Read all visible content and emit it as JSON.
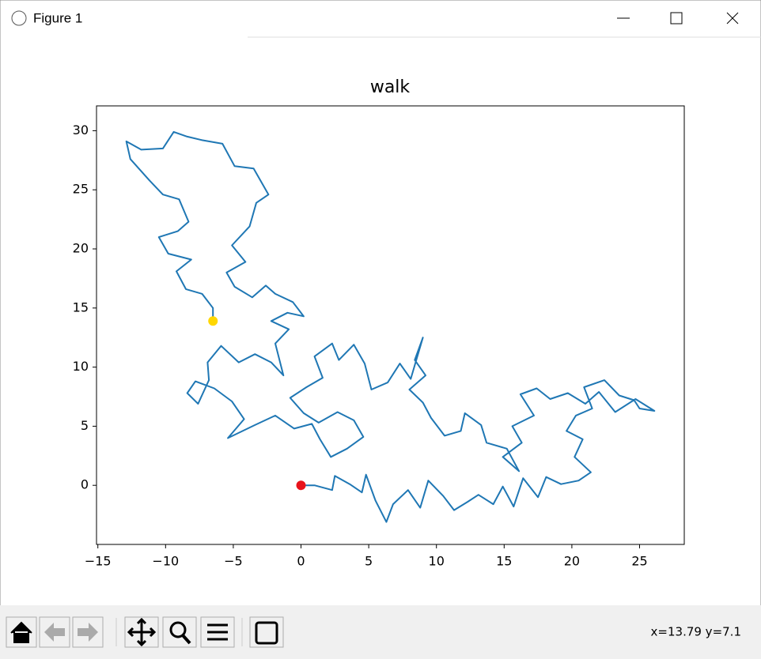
{
  "window_title": "Figure 1",
  "status": "x=13.79 y=7.1",
  "chart_data": {
    "type": "line",
    "title": "walk",
    "x": [
      0,
      1,
      2.3,
      2.5,
      3.6,
      4.5,
      4.8,
      5.5,
      6.3,
      6.8,
      7.9,
      8.8,
      9.4,
      10.5,
      11.3,
      12.3,
      13.1,
      14.2,
      14.9,
      15.7,
      16.4,
      17.5,
      18.1,
      19.2,
      20.5,
      21.4,
      20.2,
      20.8,
      19.6,
      20.3,
      21.5,
      20.9,
      22.4,
      23.5,
      24.6,
      25.0,
      26.1,
      24.7,
      23.2,
      22.0,
      21.0,
      19.7,
      18.4,
      17.4,
      16.2,
      17.2,
      15.6,
      16.3,
      14.9,
      16.1,
      15.2,
      13.7,
      13.3,
      12.1,
      11.8,
      10.6,
      9.6,
      9.0,
      8.0,
      9.2,
      8.4,
      9.0,
      8.1,
      7.3,
      6.4,
      5.2,
      4.7,
      3.9,
      2.8,
      2.3,
      1.0,
      1.6,
      0.4,
      -0.8,
      0.2,
      1.3,
      2.7,
      3.9,
      4.6,
      3.4,
      2.2,
      1.4,
      0.8,
      -0.5,
      -1.9,
      -3.4,
      -5.4,
      -4.2,
      -5.1,
      -6.4,
      -7.8,
      -8.4,
      -7.6,
      -6.8,
      -6.9,
      -5.9,
      -4.6,
      -3.4,
      -2.2,
      -1.3,
      -1.9,
      -0.9,
      -2.2,
      -1.0,
      0.2,
      -0.6,
      -1.9,
      -2.6,
      -3.6,
      -4.9,
      -5.5,
      -4.1,
      -5.1,
      -3.8,
      -3.3,
      -2.4,
      -3.5,
      -4.9,
      -5.8,
      -7.3,
      -8.4,
      -9.4,
      -10.2,
      -11.8,
      -12.9,
      -12.6,
      -11.2,
      -10.2,
      -9.0,
      -8.3,
      -9.1,
      -10.5,
      -9.8,
      -8.1,
      -9.2,
      -8.5,
      -7.3,
      -6.5,
      -6.5
    ],
    "series": [
      {
        "color": "#1f77b4",
        "values": [
          0,
          0,
          -0.4,
          0.8,
          0.1,
          -0.6,
          0.9,
          -1.3,
          -3.1,
          -1.6,
          -0.4,
          -1.9,
          0.4,
          -0.9,
          -2.1,
          -1.4,
          -0.8,
          -1.6,
          -0.1,
          -1.8,
          0.6,
          -1.0,
          0.7,
          0.1,
          0.4,
          1.1,
          2.4,
          3.9,
          4.6,
          5.9,
          6.5,
          8.3,
          8.9,
          7.6,
          7.2,
          6.5,
          6.3,
          7.3,
          6.2,
          7.9,
          6.9,
          7.8,
          7.3,
          8.2,
          7.7,
          5.9,
          5.0,
          3.6,
          2.4,
          1.2,
          3.1,
          3.6,
          5.1,
          6.1,
          4.6,
          4.2,
          5.7,
          7.0,
          8.1,
          9.3,
          10.6,
          12.5,
          9.0,
          10.3,
          8.7,
          8.1,
          10.3,
          11.9,
          10.6,
          12.0,
          10.9,
          9.1,
          8.3,
          7.4,
          6.1,
          5.3,
          6.2,
          5.5,
          4.1,
          3.1,
          2.4,
          3.9,
          5.2,
          4.8,
          5.9,
          5.1,
          4.0,
          5.6,
          7.1,
          8.2,
          8.8,
          7.8,
          6.9,
          8.9,
          10.4,
          11.8,
          10.4,
          11.1,
          10.4,
          9.3,
          12.0,
          13.2,
          13.9,
          14.6,
          14.3,
          15.5,
          16.2,
          16.9,
          15.9,
          16.8,
          18.0,
          18.9,
          20.3,
          21.9,
          23.9,
          24.6,
          26.8,
          27.0,
          28.9,
          29.2,
          29.5,
          29.9,
          28.5,
          28.4,
          29.1,
          27.6,
          25.8,
          24.6,
          24.2,
          22.3,
          21.5,
          21.0,
          19.6,
          19.1,
          18.1,
          16.6,
          16.2,
          15.0,
          13.9
        ]
      }
    ],
    "points": [
      {
        "x": 0,
        "y": 0,
        "color": "#e8141c"
      },
      {
        "x": -6.5,
        "y": 13.9,
        "color": "#ffd700"
      }
    ],
    "xlim": [
      -15.1,
      28.3
    ],
    "ylim": [
      -5.0,
      32.1
    ],
    "xticks": [
      {
        "value": -15,
        "label": "−15"
      },
      {
        "value": -10,
        "label": "−10"
      },
      {
        "value": -5,
        "label": "−5"
      },
      0,
      5,
      10,
      15,
      20,
      25
    ],
    "yticks": [
      0,
      5,
      10,
      15,
      20,
      25,
      30
    ]
  }
}
